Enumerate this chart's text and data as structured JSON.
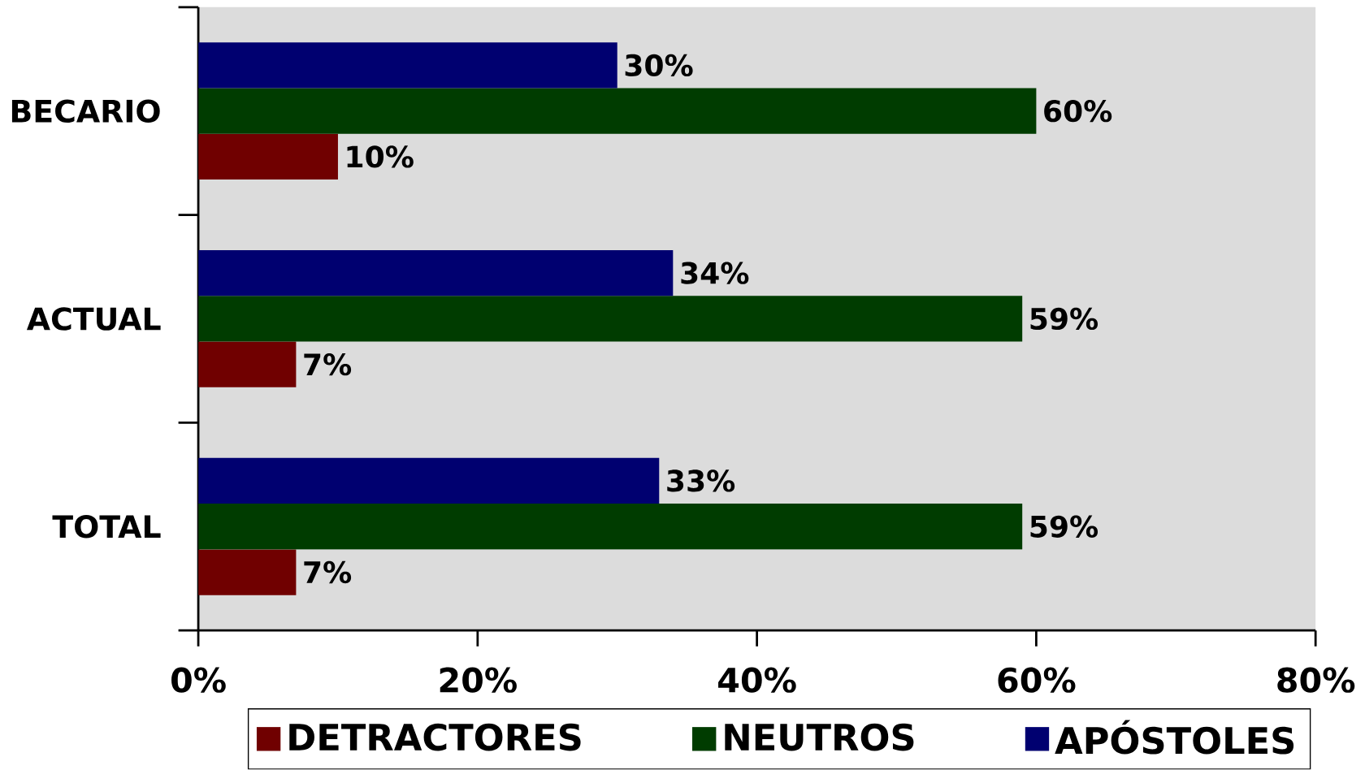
{
  "chart_data": {
    "type": "bar",
    "orientation": "horizontal",
    "categories": [
      "BECARIO",
      "ACTUAL",
      "TOTAL"
    ],
    "series": [
      {
        "name": "DETRACTORES",
        "color": "#700000",
        "values": [
          10,
          7,
          7
        ],
        "value_labels": [
          "10%",
          "7%",
          "7%"
        ]
      },
      {
        "name": "NEUTROS",
        "color": "#003c00",
        "values": [
          60,
          59,
          59
        ],
        "value_labels": [
          "60%",
          "59%",
          "59%"
        ]
      },
      {
        "name": "APÓSTOLES",
        "color": "#000070",
        "values": [
          30,
          34,
          33
        ],
        "value_labels": [
          "30%",
          "34%",
          "33%"
        ]
      }
    ],
    "xlim": [
      0,
      80
    ],
    "xticks": [
      {
        "value": 0,
        "label": "0%"
      },
      {
        "value": 20,
        "label": "20%"
      },
      {
        "value": 40,
        "label": "40%"
      },
      {
        "value": 60,
        "label": "60%"
      },
      {
        "value": 80,
        "label": "80%"
      }
    ],
    "grid": false,
    "legend": "bottom"
  }
}
